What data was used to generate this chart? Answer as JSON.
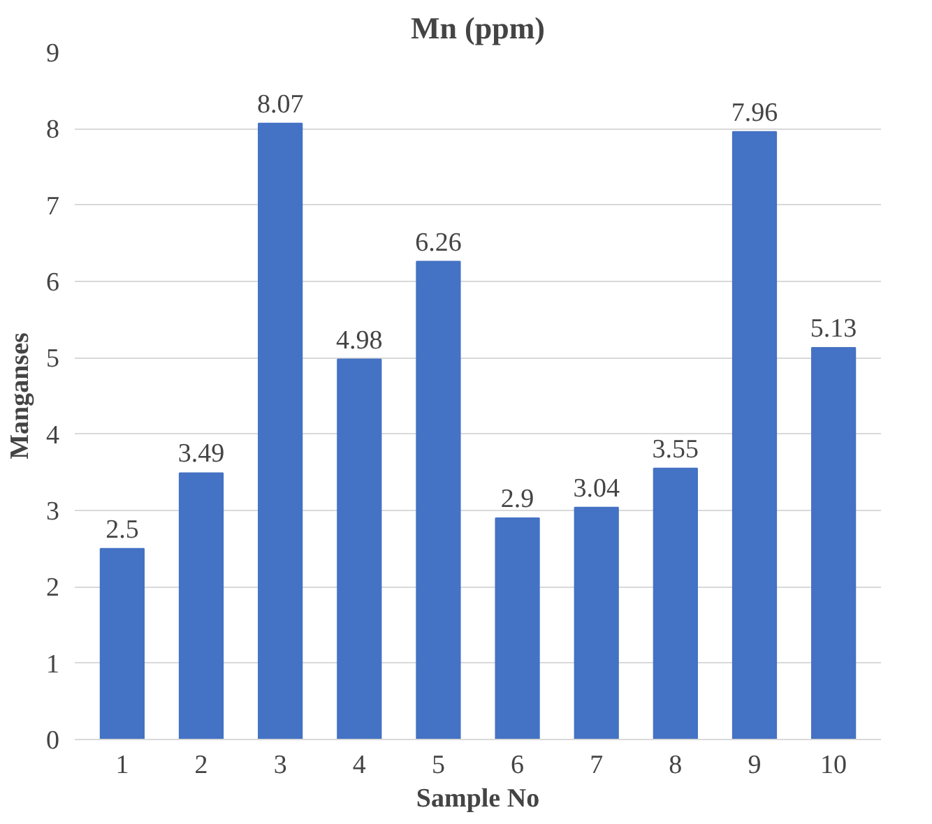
{
  "chart_data": {
    "type": "bar",
    "title": "Mn (ppm)",
    "xlabel": "Sample No",
    "ylabel": "Manganses",
    "categories": [
      "1",
      "2",
      "3",
      "4",
      "5",
      "6",
      "7",
      "8",
      "9",
      "10"
    ],
    "values": [
      2.5,
      3.49,
      8.07,
      4.98,
      6.26,
      2.9,
      3.04,
      3.55,
      7.96,
      5.13
    ],
    "color": "#4472c4",
    "ylim": [
      0,
      9
    ],
    "yticks": [
      0,
      1,
      2,
      3,
      4,
      5,
      6,
      7,
      8,
      9
    ],
    "grid": "y",
    "data_labels": true
  }
}
